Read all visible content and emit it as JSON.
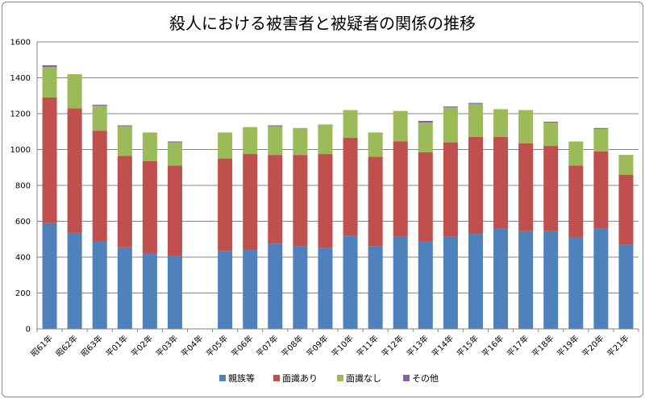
{
  "chart_data": {
    "type": "bar",
    "stacked": true,
    "title": "殺人における被害者と被疑者の関係の推移",
    "xlabel": "",
    "ylabel": "",
    "ylim": [
      0,
      1600
    ],
    "yticks": [
      0,
      200,
      400,
      600,
      800,
      1000,
      1200,
      1400,
      1600
    ],
    "grid": true,
    "legend_position": "bottom",
    "categories": [
      "昭61年",
      "昭62年",
      "昭63年",
      "平01年",
      "平02年",
      "平03年",
      "平04年",
      "平05年",
      "平06年",
      "平07年",
      "平08年",
      "平09年",
      "平10年",
      "平11年",
      "平12年",
      "平13年",
      "平14年",
      "平15年",
      "平16年",
      "平17年",
      "平18年",
      "平19年",
      "平20年",
      "平21年"
    ],
    "series": [
      {
        "name": "親族等",
        "color": "#4f81bd",
        "values": [
          590,
          535,
          490,
          455,
          420,
          405,
          null,
          435,
          440,
          475,
          460,
          450,
          520,
          460,
          515,
          490,
          515,
          530,
          560,
          545,
          545,
          510,
          560,
          470
        ]
      },
      {
        "name": "面識あり",
        "color": "#c0504d",
        "values": [
          700,
          695,
          615,
          510,
          515,
          505,
          null,
          515,
          535,
          495,
          510,
          525,
          545,
          500,
          530,
          495,
          525,
          540,
          510,
          490,
          475,
          400,
          430,
          390
        ]
      },
      {
        "name": "面識なし",
        "color": "#9bbb59",
        "values": [
          170,
          190,
          140,
          165,
          160,
          130,
          null,
          145,
          150,
          160,
          150,
          165,
          155,
          135,
          170,
          165,
          195,
          185,
          155,
          185,
          130,
          135,
          125,
          110
        ]
      },
      {
        "name": "その他",
        "color": "#8064a2",
        "values": [
          10,
          0,
          5,
          5,
          0,
          5,
          null,
          0,
          0,
          5,
          0,
          0,
          0,
          0,
          0,
          10,
          5,
          5,
          0,
          0,
          5,
          0,
          5,
          0
        ]
      }
    ]
  }
}
